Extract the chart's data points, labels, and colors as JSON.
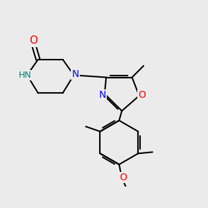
{
  "background_color": "#ebebeb",
  "bond_color": "#000000",
  "bond_width": 1.5,
  "atom_colors": {
    "O": "#ff0000",
    "N": "#0000ff",
    "C": "#000000",
    "H": "#008080"
  },
  "font_size": 9,
  "fig_width": 3.0,
  "fig_height": 3.0,
  "dpi": 100
}
